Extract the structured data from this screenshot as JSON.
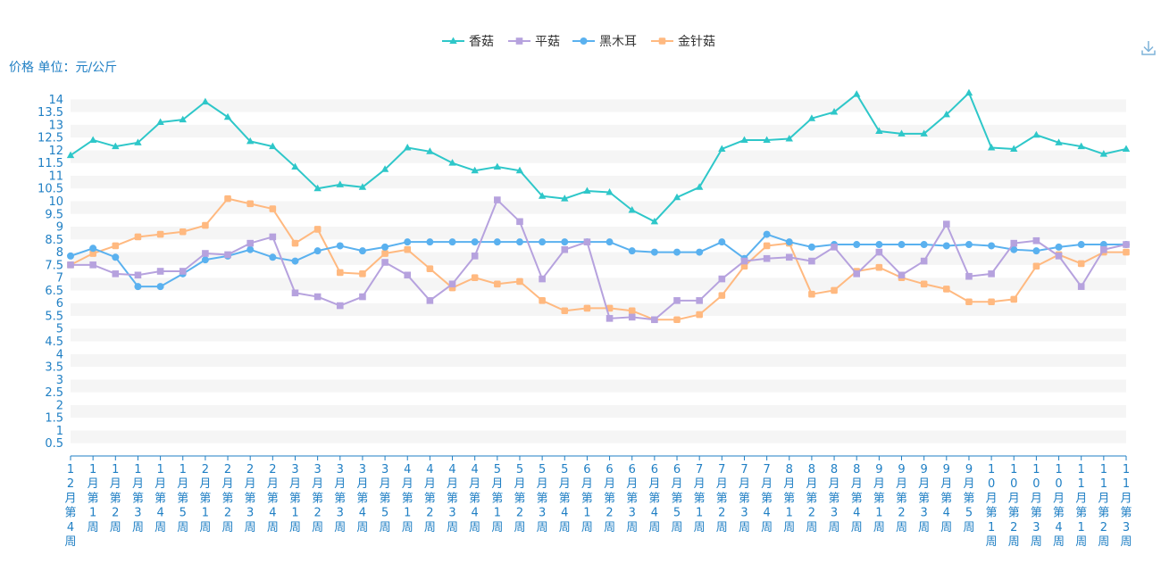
{
  "y_axis_name": "价格 单位：元/公斤",
  "toolbox": {
    "download_icon": "download-icon"
  },
  "chart_data": {
    "type": "line",
    "title": "",
    "ylabel": "价格 单位：元/公斤",
    "ylim": [
      0,
      14.5
    ],
    "y_ticks": [
      0.5,
      1,
      1.5,
      2,
      2.5,
      3,
      3.5,
      4,
      4.5,
      5,
      5.5,
      6,
      6.5,
      7,
      7.5,
      8,
      8.5,
      9,
      9.5,
      10,
      10.5,
      11,
      11.5,
      12,
      12.5,
      13,
      13.5,
      14
    ],
    "legend_position": "top-center",
    "grid": "horizontal-bands",
    "x": [
      "12月第4周",
      "1月第1周",
      "1月第2周",
      "1月第3周",
      "1月第4周",
      "1月第5周",
      "2月第1周",
      "2月第2周",
      "2月第3周",
      "2月第4周",
      "3月第1周",
      "3月第2周",
      "3月第3周",
      "3月第4周",
      "3月第5周",
      "4月第1周",
      "4月第2周",
      "4月第3周",
      "4月第4周",
      "5月第1周",
      "5月第2周",
      "5月第3周",
      "5月第4周",
      "6月第1周",
      "6月第2周",
      "6月第3周",
      "6月第4周",
      "6月第5周",
      "7月第1周",
      "7月第2周",
      "7月第3周",
      "7月第4周",
      "8月第1周",
      "8月第2周",
      "8月第3周",
      "8月第4周",
      "9月第1周",
      "9月第2周",
      "9月第3周",
      "9月第4周",
      "9月第5周",
      "10月第1周",
      "10月第2周",
      "10月第3周",
      "10月第4周",
      "11月第1周",
      "11月第2周",
      "11月第3周"
    ],
    "series": [
      {
        "name": "香菇",
        "color": "#2ec7c9",
        "marker": "triangle",
        "values": [
          11.8,
          12.4,
          12.15,
          12.3,
          13.1,
          13.2,
          13.9,
          13.3,
          12.35,
          12.15,
          11.35,
          10.5,
          10.65,
          10.55,
          11.25,
          12.1,
          11.95,
          11.5,
          11.2,
          11.35,
          11.2,
          10.2,
          10.1,
          10.4,
          10.35,
          9.65,
          9.2,
          10.15,
          10.55,
          12.05,
          12.4,
          12.4,
          12.45,
          13.25,
          13.5,
          14.2,
          12.75,
          12.65,
          12.65,
          13.4,
          14.25,
          12.1,
          12.05,
          12.6,
          12.3,
          12.15,
          11.85,
          12.05
        ]
      },
      {
        "name": "平菇",
        "color": "#b6a2de",
        "marker": "square",
        "values": [
          7.5,
          7.5,
          7.15,
          7.1,
          7.25,
          7.25,
          7.95,
          7.9,
          8.35,
          8.6,
          6.4,
          6.25,
          5.9,
          6.25,
          7.6,
          7.1,
          6.1,
          6.75,
          7.85,
          10.05,
          9.2,
          6.95,
          8.1,
          8.4,
          5.4,
          5.45,
          5.35,
          6.1,
          6.1,
          6.95,
          7.65,
          7.75,
          7.8,
          7.65,
          8.2,
          7.15,
          8.0,
          7.1,
          7.65,
          9.1,
          7.05,
          7.15,
          8.35,
          8.45,
          7.85,
          6.65,
          8.1,
          8.3
        ]
      },
      {
        "name": "黑木耳",
        "color": "#5ab1ef",
        "marker": "circle",
        "values": [
          7.85,
          8.15,
          7.8,
          6.65,
          6.65,
          7.15,
          7.7,
          7.85,
          8.1,
          7.8,
          7.65,
          8.05,
          8.25,
          8.05,
          8.2,
          8.4,
          8.4,
          8.4,
          8.4,
          8.4,
          8.4,
          8.4,
          8.4,
          8.4,
          8.4,
          8.05,
          8.0,
          8.0,
          8.0,
          8.4,
          7.75,
          8.7,
          8.4,
          8.2,
          8.3,
          8.3,
          8.3,
          8.3,
          8.3,
          8.25,
          8.3,
          8.25,
          8.1,
          8.05,
          8.2,
          8.3,
          8.3,
          8.3
        ]
      },
      {
        "name": "金针菇",
        "color": "#ffb980",
        "marker": "rounded-square",
        "values": [
          7.5,
          7.95,
          8.25,
          8.6,
          8.7,
          8.8,
          9.05,
          10.1,
          9.9,
          9.7,
          8.35,
          8.9,
          7.2,
          7.15,
          7.95,
          8.1,
          7.35,
          6.6,
          7.0,
          6.75,
          6.85,
          6.1,
          5.7,
          5.8,
          5.8,
          5.7,
          5.35,
          5.35,
          5.55,
          6.3,
          7.45,
          8.25,
          8.35,
          6.35,
          6.5,
          7.25,
          7.4,
          7.0,
          6.75,
          6.55,
          6.05,
          6.05,
          6.15,
          7.45,
          7.9,
          7.55,
          8.0,
          8.0
        ]
      }
    ]
  }
}
